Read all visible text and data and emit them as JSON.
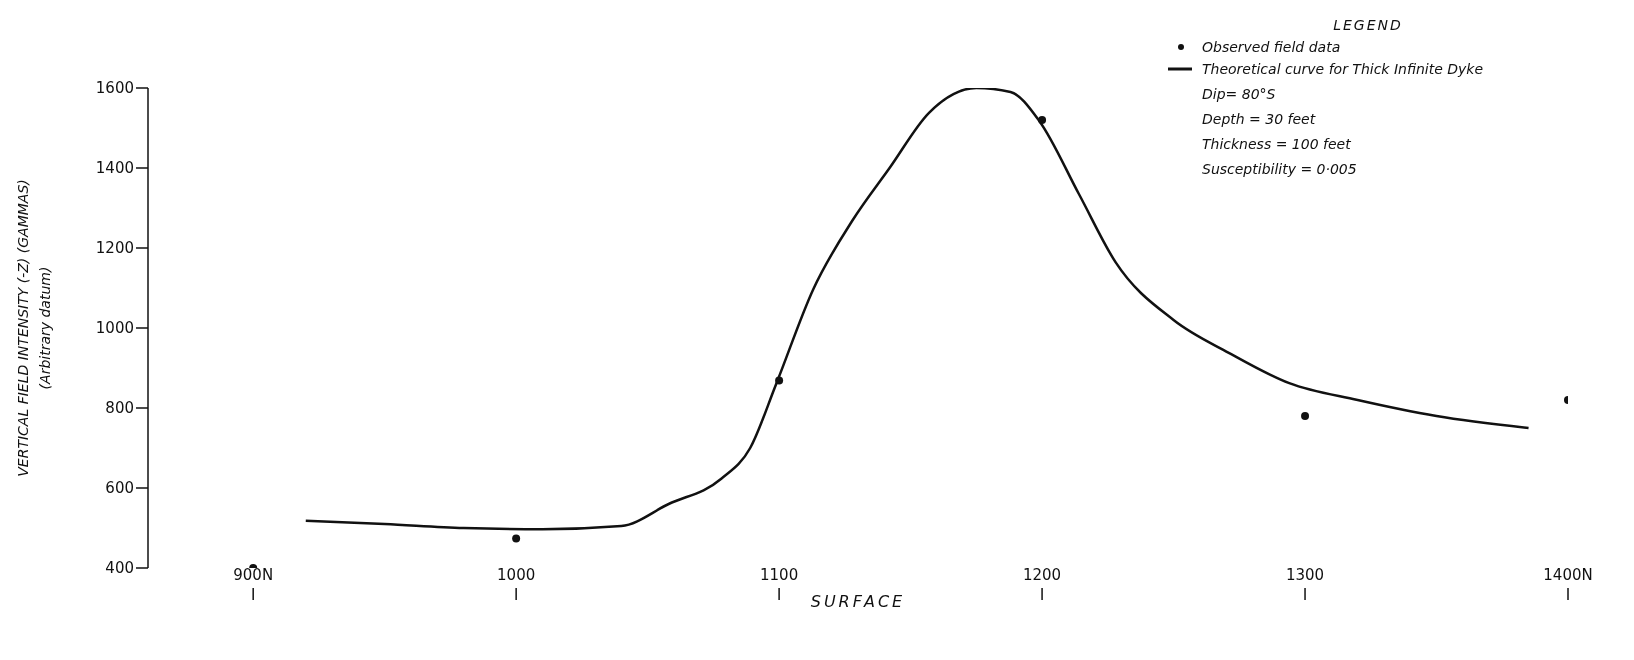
{
  "chart_data": {
    "type": "line",
    "xlabel": "SURFACE",
    "ylabel": "VERTICAL FIELD INTENSITY (-Z) (GAMMAS)\n(Arbitrary datum)",
    "legend_title": "LEGEND",
    "legend": "top right",
    "line_style": "solid",
    "xlim": [
      860,
      1400
    ],
    "xticks": [
      {
        "value": 900,
        "label": "900N"
      },
      1000,
      1100,
      1200,
      1300,
      {
        "value": 1400,
        "label": "1400N"
      }
    ],
    "ylim": [
      400,
      1600
    ],
    "yticks": [
      400,
      600,
      800,
      1000,
      1200,
      1400,
      1600
    ],
    "series": [
      {
        "name": "Observed field data",
        "type": "scatter",
        "marker": "circle",
        "color": "#111111",
        "x": [
          900,
          1000,
          1100,
          1200,
          1300,
          1400
        ],
        "values": [
          400,
          474,
          869,
          1520,
          780,
          820
        ]
      },
      {
        "name": "Theoretical curve for Thick Infinite Dyke",
        "color": "#111111",
        "x": [
          920,
          950,
          980,
          1010,
          1040,
          1058,
          1078,
          1089,
          1099,
          1113,
          1128,
          1142,
          1157,
          1175,
          1188,
          1199,
          1214,
          1228,
          1250,
          1271,
          1294,
          1320,
          1350,
          1385
        ],
        "values": [
          518,
          510,
          500,
          497,
          505,
          560,
          623,
          700,
          862,
          1097,
          1270,
          1400,
          1538,
          1600,
          1590,
          1517,
          1335,
          1164,
          1020,
          938,
          862,
          820,
          780,
          750
        ]
      }
    ],
    "annotations": [
      "Dip= 80°S",
      "Depth = 30 feet",
      "Thickness = 100 feet",
      "Susceptibility = 0·005"
    ]
  }
}
